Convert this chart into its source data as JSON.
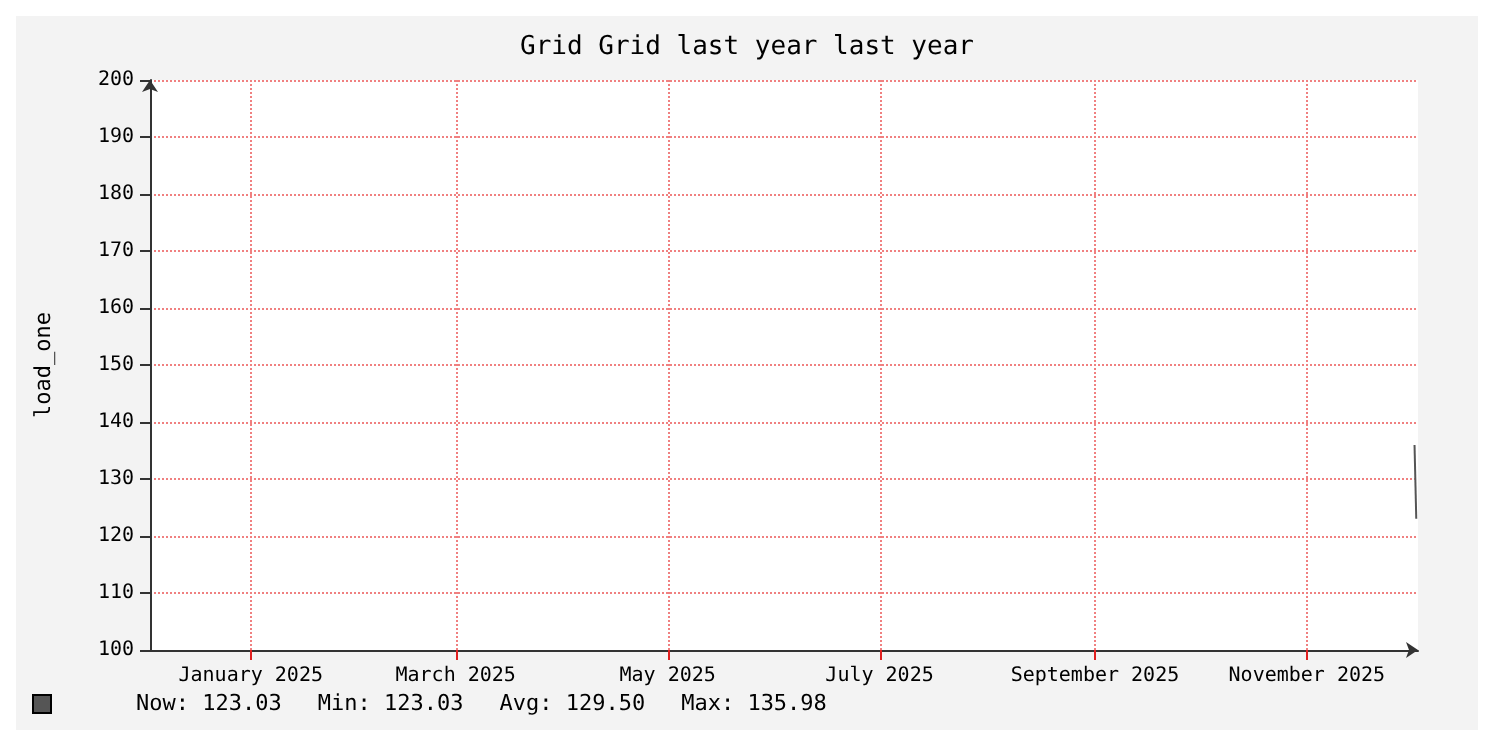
{
  "chart_data": {
    "type": "line",
    "title": "Grid Grid last year last year",
    "ylabel": "load_one",
    "series": [
      {
        "color": "#555555",
        "x": [
          "2025-12-16T00:00",
          "2025-12-16T12:00"
        ],
        "values": [
          135.98,
          123.03
        ]
      }
    ],
    "xlim": [
      "2024-12-17",
      "2025-12-17"
    ],
    "xticks": [
      {
        "value": "2025-01-15",
        "label": "January 2025"
      },
      {
        "value": "2025-03-15",
        "label": "March 2025"
      },
      {
        "value": "2025-05-15",
        "label": "May 2025"
      },
      {
        "value": "2025-07-15",
        "label": "July 2025"
      },
      {
        "value": "2025-09-15",
        "label": "September 2025"
      },
      {
        "value": "2025-11-15",
        "label": "November 2025"
      }
    ],
    "ylim": [
      100,
      200
    ],
    "yticks": [
      100,
      110,
      120,
      130,
      140,
      150,
      160,
      170,
      180,
      190,
      200
    ],
    "grid": true,
    "marker": "none",
    "line_style": "solid",
    "annotations": [
      "Now: 123.03",
      "Min: 123.03",
      "Avg: 129.50",
      "Max: 135.98"
    ]
  }
}
